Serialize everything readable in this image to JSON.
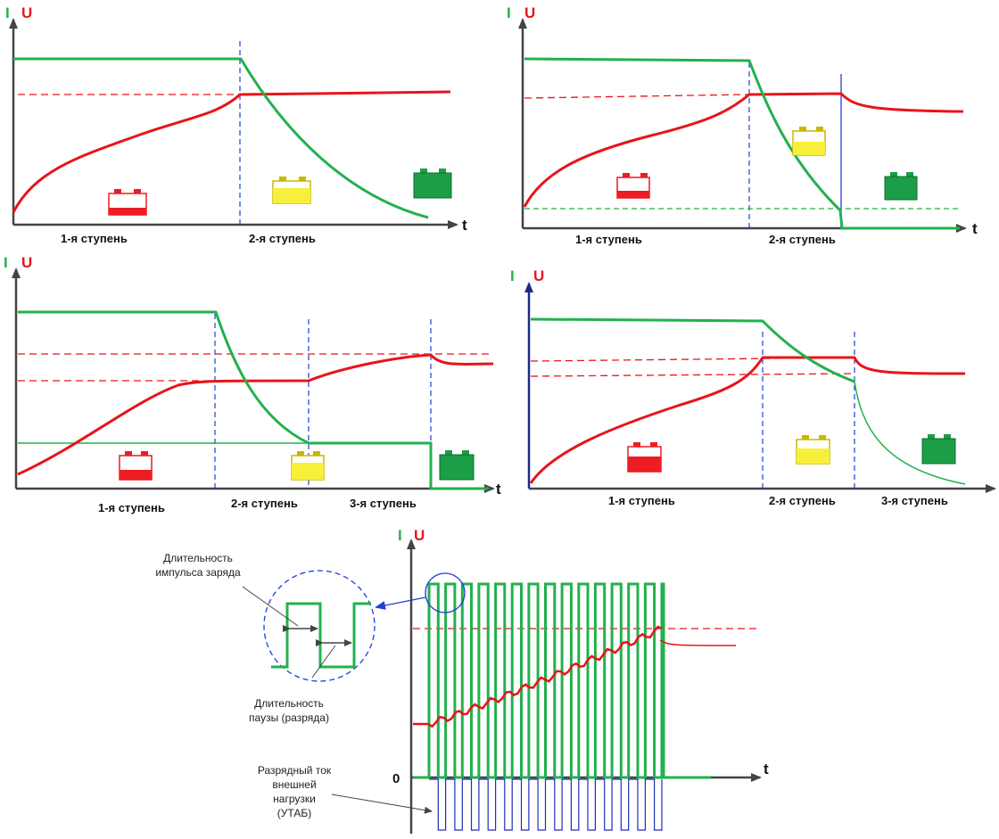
{
  "colors": {
    "current": "#22b14c",
    "voltage": "#e8141b",
    "axis": "#444444",
    "divider": "#1f3fd6",
    "battery_empty": "#ee1c24",
    "battery_half": "#f7ef3a",
    "battery_full": "#1c9e46",
    "discharge": "#1f2fb4"
  },
  "axes": {
    "current": "I",
    "voltage": "U",
    "time": "t",
    "zero": "0"
  },
  "diagram1": {
    "stage1": "1-я ступень",
    "stage2": "2-я ступень"
  },
  "diagram2": {
    "stage1": "1-я ступень",
    "stage2": "2-я ступень"
  },
  "diagram3": {
    "stage1": "1-я ступень",
    "stage2": "2-я ступень",
    "stage3": "3-я ступень"
  },
  "diagram4": {
    "stage1": "1-я ступень",
    "stage2": "2-я ступень",
    "stage3": "3-я ступень"
  },
  "pulse": {
    "pulse_duration_line1": "Длительность",
    "pulse_duration_line2": "импульса заряда",
    "pause_duration_line1": "Длительность",
    "pause_duration_line2": "паузы (разряда)",
    "discharge_line1": "Разрядный ток",
    "discharge_line2": "внешней",
    "discharge_line3": "нагрузки",
    "discharge_line4": "(УТАБ)"
  }
}
